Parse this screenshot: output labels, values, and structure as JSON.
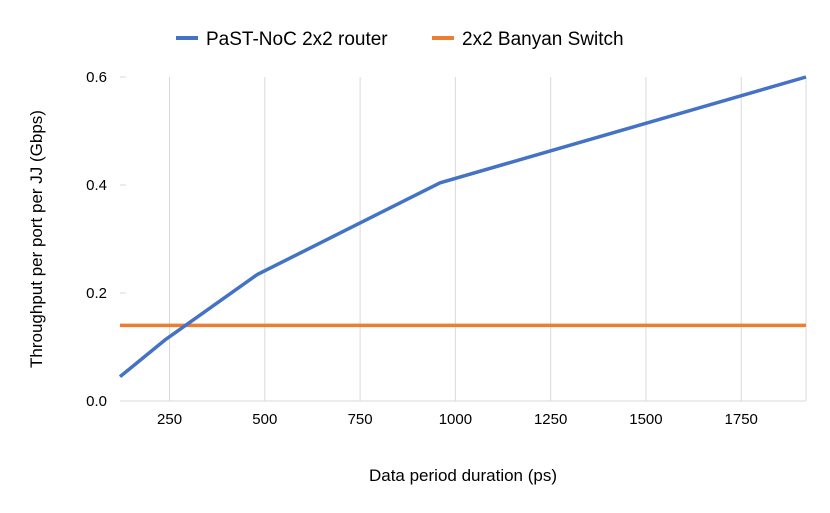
{
  "chart_data": {
    "type": "line",
    "title": "",
    "xlabel": "Data period duration (ps)",
    "ylabel": "Throughput per port per JJ (Gbps)",
    "xlim": [
      120,
      1920
    ],
    "ylim": [
      0,
      0.6
    ],
    "xticks": [
      250,
      500,
      750,
      1000,
      1250,
      1500,
      1750
    ],
    "yticks": [
      0.0,
      0.2,
      0.4,
      0.6
    ],
    "ytick_labels": [
      "0.0",
      "0.2",
      "0.4",
      "0.6"
    ],
    "grid": "vertical",
    "legend_position": "top",
    "series": [
      {
        "name": "PaST-NoC 2x2 router",
        "color": "#4472C4",
        "x": [
          120,
          240,
          480,
          960,
          1920
        ],
        "y": [
          0.045,
          0.114,
          0.234,
          0.404,
          0.6
        ]
      },
      {
        "name": "2x2 Banyan Switch",
        "color": "#ED7D31",
        "x": [
          120,
          1920
        ],
        "y": [
          0.14,
          0.14
        ]
      }
    ]
  }
}
